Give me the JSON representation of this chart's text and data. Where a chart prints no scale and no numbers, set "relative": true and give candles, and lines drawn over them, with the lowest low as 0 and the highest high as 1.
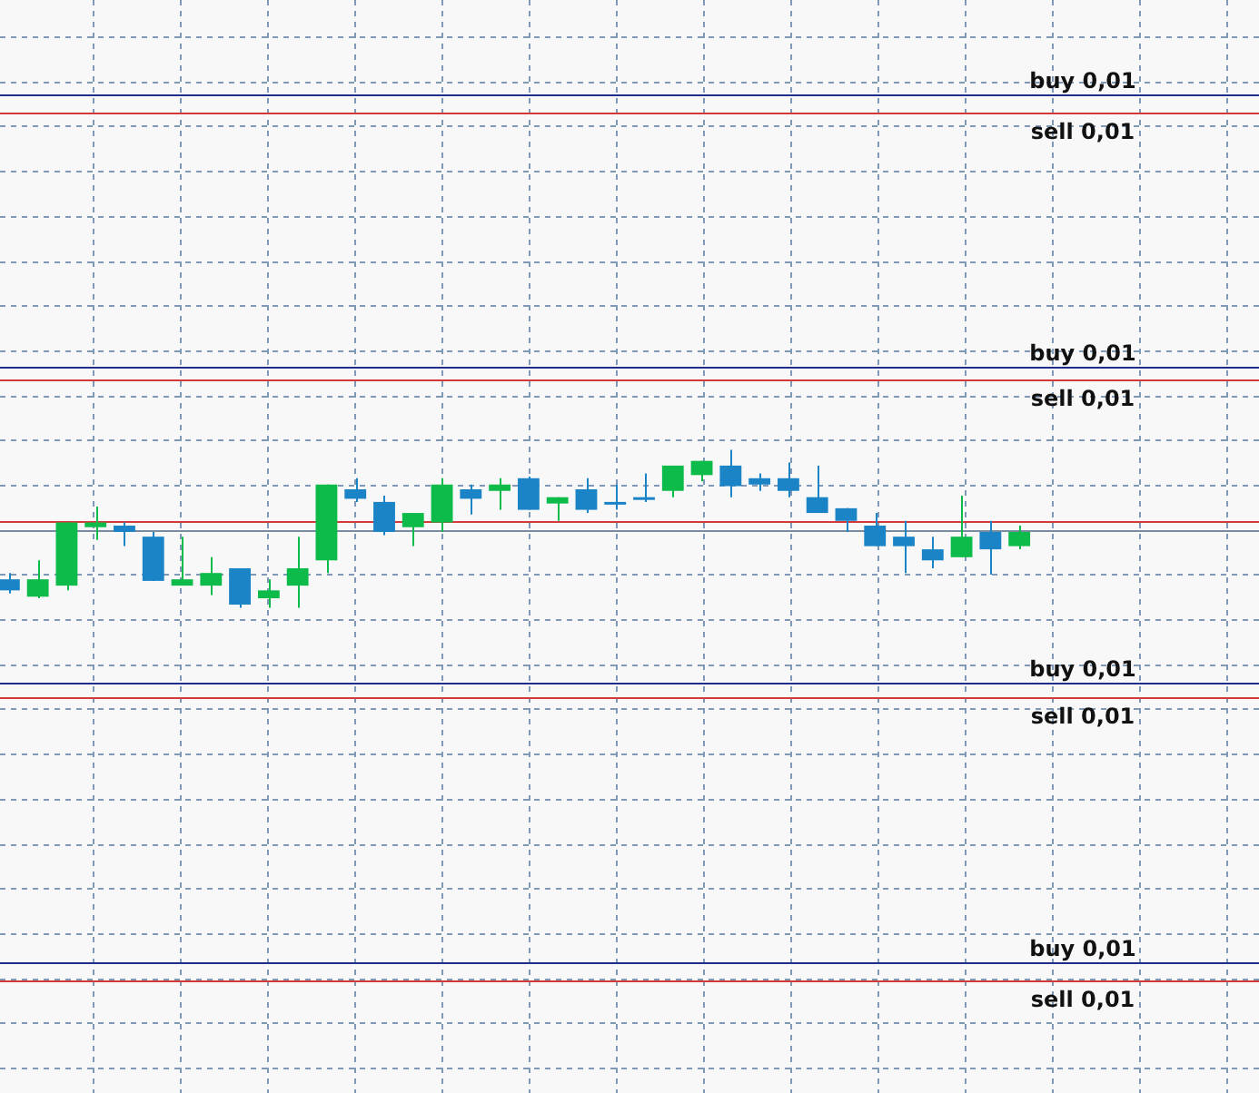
{
  "chart_data": {
    "type": "candlestick",
    "relative": true,
    "grid": true,
    "tick_labels": false,
    "categories": [
      null,
      null,
      null,
      null,
      null,
      null,
      null,
      null,
      null,
      null,
      null,
      null,
      null,
      null,
      null,
      null,
      null,
      null,
      null,
      null,
      null,
      null,
      null,
      null,
      null,
      null,
      null,
      null,
      null,
      null,
      null,
      null,
      null,
      null,
      null,
      null
    ],
    "ohlc": [
      [
        0.18,
        0.22,
        0.09,
        0.11
      ],
      [
        0.07,
        0.3,
        0.06,
        0.18
      ],
      [
        0.14,
        0.54,
        0.11,
        0.54
      ],
      [
        0.51,
        0.64,
        0.43,
        0.54
      ],
      [
        0.52,
        0.54,
        0.39,
        0.48
      ],
      [
        0.45,
        0.48,
        0.17,
        0.17
      ],
      [
        0.14,
        0.45,
        0.14,
        0.18
      ],
      [
        0.14,
        0.32,
        0.08,
        0.22
      ],
      [
        0.25,
        0.25,
        0,
        0.02
      ],
      [
        0.06,
        0.18,
        0,
        0.11
      ],
      [
        0.14,
        0.45,
        0,
        0.25
      ],
      [
        0.3,
        0.78,
        0.22,
        0.78
      ],
      [
        0.75,
        0.82,
        0.67,
        0.69
      ],
      [
        0.67,
        0.71,
        0.46,
        0.48
      ],
      [
        0.51,
        0.6,
        0.39,
        0.6
      ],
      [
        0.54,
        0.82,
        0.48,
        0.78
      ],
      [
        0.75,
        0.78,
        0.59,
        0.69
      ],
      [
        0.74,
        0.82,
        0.62,
        0.78
      ],
      [
        0.82,
        0.83,
        0.62,
        0.62
      ],
      [
        0.66,
        0.7,
        0.55,
        0.7
      ],
      [
        0.75,
        0.82,
        0.6,
        0.62
      ],
      [
        0.67,
        0.78,
        0.62,
        0.67
      ],
      [
        0.7,
        0.85,
        0.67,
        0.7
      ],
      [
        0.74,
        0.9,
        0.7,
        0.9
      ],
      [
        0.84,
        0.93,
        0.8,
        0.93
      ],
      [
        0.9,
        1,
        0.7,
        0.77
      ],
      [
        0.82,
        0.85,
        0.74,
        0.78
      ],
      [
        0.82,
        0.92,
        0.7,
        0.74
      ],
      [
        0.7,
        0.9,
        0.6,
        0.6
      ],
      [
        0.63,
        0.63,
        0.48,
        0.55
      ],
      [
        0.52,
        0.6,
        0.39,
        0.39
      ],
      [
        0.45,
        0.55,
        0.22,
        0.39
      ],
      [
        0.37,
        0.45,
        0.25,
        0.3
      ],
      [
        0.32,
        0.71,
        0.32,
        0.45
      ],
      [
        0.48,
        0.55,
        0.21,
        0.37
      ],
      [
        0.39,
        0.52,
        0.37,
        0.48
      ]
    ],
    "colors": [
      "#1a84c7",
      "#0dbb4a",
      "#0dbb4a",
      "#0dbb4a",
      "#1a84c7",
      "#1a84c7",
      "#0dbb4a",
      "#0dbb4a",
      "#1a84c7",
      "#0dbb4a",
      "#0dbb4a",
      "#0dbb4a",
      "#1a84c7",
      "#1a84c7",
      "#0dbb4a",
      "#0dbb4a",
      "#1a84c7",
      "#0dbb4a",
      "#1a84c7",
      "#0dbb4a",
      "#1a84c7",
      "#1a84c7",
      "#1a84c7",
      "#0dbb4a",
      "#0dbb4a",
      "#1a84c7",
      "#1a84c7",
      "#1a84c7",
      "#1a84c7",
      "#1a84c7",
      "#1a84c7",
      "#1a84c7",
      "#1a84c7",
      "#0dbb4a",
      "#1a84c7",
      "#0dbb4a"
    ],
    "ref_lines": [
      {
        "axis": "y",
        "value": 3.25,
        "label": "buy 0,01",
        "color": "#1f2d8a"
      },
      {
        "axis": "y",
        "value": 3.14,
        "label": "sell 0,01",
        "color": "#d43a3a"
      },
      {
        "axis": "y",
        "value": 1.53,
        "label": "buy 0,01",
        "color": "#1f2d8a"
      },
      {
        "axis": "y",
        "value": 1.44,
        "label": "sell 0,01",
        "color": "#d43a3a"
      },
      {
        "axis": "y",
        "value": 0.55,
        "label": null,
        "color": "#d43a3a"
      },
      {
        "axis": "y",
        "value": 0.49,
        "label": null,
        "color": "#7a8ca0"
      },
      {
        "axis": "y",
        "value": -0.48,
        "label": "buy 0,01",
        "color": "#1f2d8a"
      },
      {
        "axis": "y",
        "value": -0.57,
        "label": "sell 0,01",
        "color": "#d43a3a"
      },
      {
        "axis": "y",
        "value": -2.25,
        "label": "buy 0,01",
        "color": "#1f2d8a"
      },
      {
        "axis": "y",
        "value": -2.36,
        "label": "sell 0,01",
        "color": "#d43a3a"
      }
    ]
  }
}
